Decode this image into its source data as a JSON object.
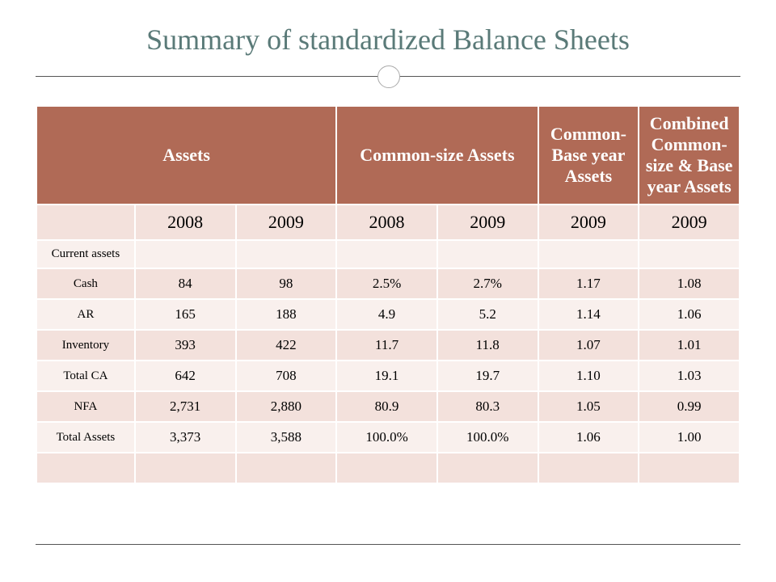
{
  "title": {
    "text": "Summary of standardized Balance Sheets",
    "color": "#5a7a78",
    "fontsize": 36
  },
  "table": {
    "header_bg": "#b06a56",
    "header_fg": "#ffffff",
    "row_alt_a": "#f3e1dc",
    "row_alt_b": "#f9f0ed",
    "header_fontsize": 22,
    "columns": [
      {
        "label": "Assets",
        "span": 3
      },
      {
        "label": "Common-size Assets",
        "span": 2
      },
      {
        "label": "Common-Base year Assets",
        "span": 1
      },
      {
        "label": "Combined Common-size & Base year Assets",
        "span": 1
      }
    ],
    "years": [
      "",
      "2008",
      "2009",
      "2008",
      "2009",
      "2009",
      "2009"
    ],
    "rows": [
      {
        "kind": "section",
        "cells": [
          "Current assets",
          "",
          "",
          "",
          "",
          "",
          ""
        ]
      },
      {
        "kind": "data",
        "cells": [
          "Cash",
          "84",
          "98",
          "2.5%",
          "2.7%",
          "1.17",
          "1.08"
        ]
      },
      {
        "kind": "data",
        "cells": [
          "AR",
          "165",
          "188",
          "4.9",
          "5.2",
          "1.14",
          "1.06"
        ]
      },
      {
        "kind": "data",
        "cells": [
          "Inventory",
          "393",
          "422",
          "11.7",
          "11.8",
          "1.07",
          "1.01"
        ]
      },
      {
        "kind": "data",
        "cells": [
          "Total CA",
          "642",
          "708",
          "19.1",
          "19.7",
          "1.10",
          "1.03"
        ]
      },
      {
        "kind": "data",
        "cells": [
          "NFA",
          "2,731",
          "2,880",
          "80.9",
          "80.3",
          "1.05",
          "0.99"
        ]
      },
      {
        "kind": "data",
        "cells": [
          "Total Assets",
          "3,373",
          "3,588",
          "100.0%",
          "100.0%",
          "1.06",
          "1.00"
        ]
      },
      {
        "kind": "blank",
        "cells": [
          "",
          "",
          "",
          "",
          "",
          "",
          ""
        ]
      }
    ]
  }
}
